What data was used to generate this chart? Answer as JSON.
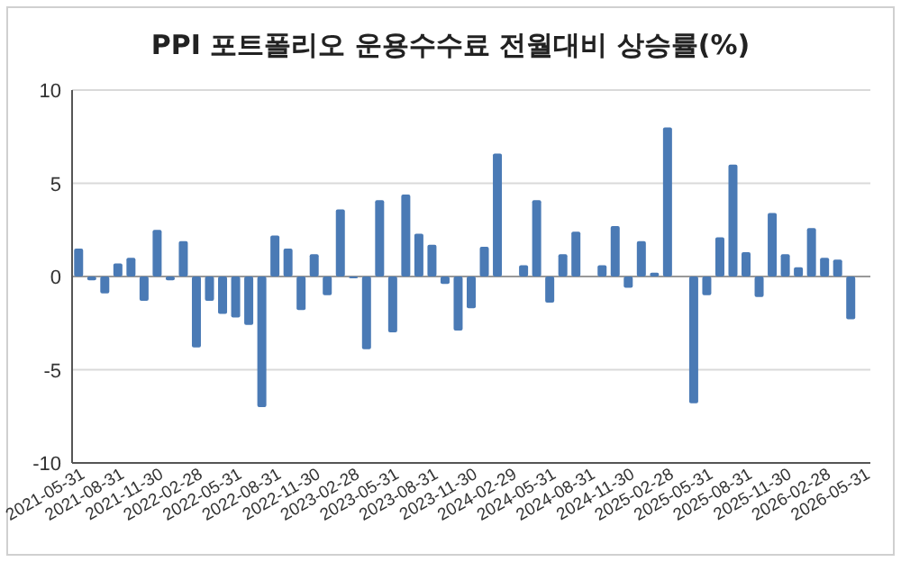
{
  "chart_data": {
    "type": "bar",
    "title": "PPI 포트폴리오 운용수수료 전월대비 상승률(%)",
    "categories": [
      "2021-05-31",
      null,
      null,
      "2021-08-31",
      null,
      null,
      "2021-11-30",
      null,
      null,
      "2022-02-28",
      null,
      null,
      "2022-05-31",
      null,
      null,
      "2022-08-31",
      null,
      null,
      "2022-11-30",
      null,
      null,
      "2023-02-28",
      null,
      null,
      "2023-05-31",
      null,
      null,
      "2023-08-31",
      null,
      null,
      "2023-11-30",
      null,
      null,
      "2024-02-29",
      null,
      null,
      "2024-05-31",
      null,
      null,
      "2024-08-31",
      null,
      null,
      "2024-11-30",
      null,
      null,
      "2025-02-28",
      null,
      null,
      "2025-05-31",
      null,
      null,
      "2025-08-31",
      null,
      null,
      "2025-11-30",
      null,
      null,
      "2026-02-28",
      null,
      null,
      "2026-05-31"
    ],
    "values": [
      1.5,
      -0.2,
      -0.9,
      0.7,
      1.0,
      -1.3,
      2.5,
      -0.2,
      1.9,
      -3.8,
      -1.3,
      -2.0,
      -2.2,
      -2.6,
      -7.0,
      2.2,
      1.5,
      -1.8,
      1.2,
      -1.0,
      3.6,
      -0.1,
      -3.9,
      4.1,
      -3.0,
      4.4,
      2.3,
      1.7,
      -0.4,
      -2.9,
      -1.7,
      1.6,
      6.6,
      0,
      0.6,
      4.1,
      -1.4,
      1.2,
      2.4,
      0,
      0.6,
      2.7,
      -0.6,
      1.9,
      0.2,
      8.0,
      0,
      -6.8,
      -1.0,
      2.1,
      6.0,
      1.3,
      -1.1,
      3.4,
      1.2,
      0.5,
      2.6,
      1.0,
      0.9,
      -2.3,
      0
    ],
    "color": "#4a7ab5",
    "ylim": [
      -10,
      10
    ],
    "yticks": [
      -10,
      -5,
      0,
      5,
      10
    ],
    "grid": "y"
  }
}
